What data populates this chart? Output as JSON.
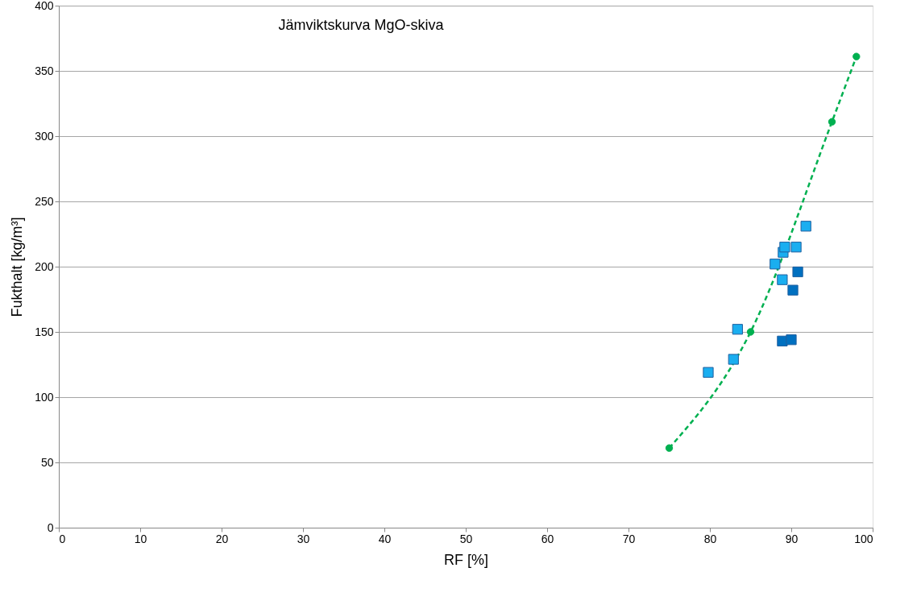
{
  "chart_data": {
    "type": "scatter",
    "title": "Jämviktskurva MgO-skiva",
    "xlabel": "RF [%]",
    "ylabel": "Fukthalt [kg/m³]",
    "xlim": [
      0,
      100
    ],
    "xticks": [
      0,
      10,
      20,
      30,
      40,
      50,
      60,
      70,
      80,
      90,
      100
    ],
    "ylim": [
      0,
      400
    ],
    "yticks": [
      0,
      50,
      100,
      150,
      200,
      250,
      300,
      350,
      400
    ],
    "grid": "y",
    "legend": false,
    "series": [
      {
        "type": "line",
        "color": "#00b050",
        "marker": "circle",
        "line_style": "dashed",
        "x": [
          75,
          85,
          95,
          98
        ],
        "values": [
          61,
          150,
          311,
          361
        ]
      },
      {
        "type": "scatter",
        "color": "#1aaef0",
        "marker": "square",
        "x": [
          79.8,
          82.9,
          83.4,
          88.0,
          88.9,
          89.0,
          89.2,
          90.6,
          91.8
        ],
        "values": [
          119,
          129,
          152,
          202,
          190,
          211,
          215,
          215,
          231
        ]
      },
      {
        "type": "scatter",
        "color": "#0070c0",
        "marker": "square",
        "x": [
          88.9,
          90.0,
          90.2,
          90.8
        ],
        "values": [
          143,
          144,
          182,
          196
        ]
      }
    ]
  }
}
